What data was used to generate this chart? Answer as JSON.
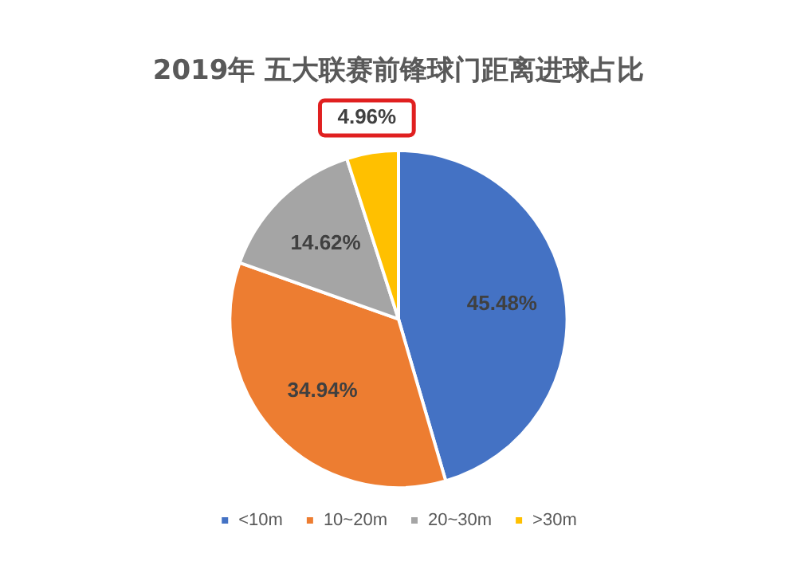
{
  "chart_data": {
    "type": "pie",
    "title": "2019年 五大联赛前锋球门距离进球占比",
    "categories": [
      "<10m",
      "10~20m",
      "20~30m",
      ">30m"
    ],
    "values": [
      45.48,
      34.94,
      14.62,
      4.96
    ],
    "colors": [
      "#4472c4",
      "#ed7d31",
      "#a5a5a5",
      "#ffc000"
    ],
    "value_labels": [
      "45.48%",
      "34.94%",
      "14.62%",
      "4.96%"
    ],
    "legend": "bottom"
  }
}
